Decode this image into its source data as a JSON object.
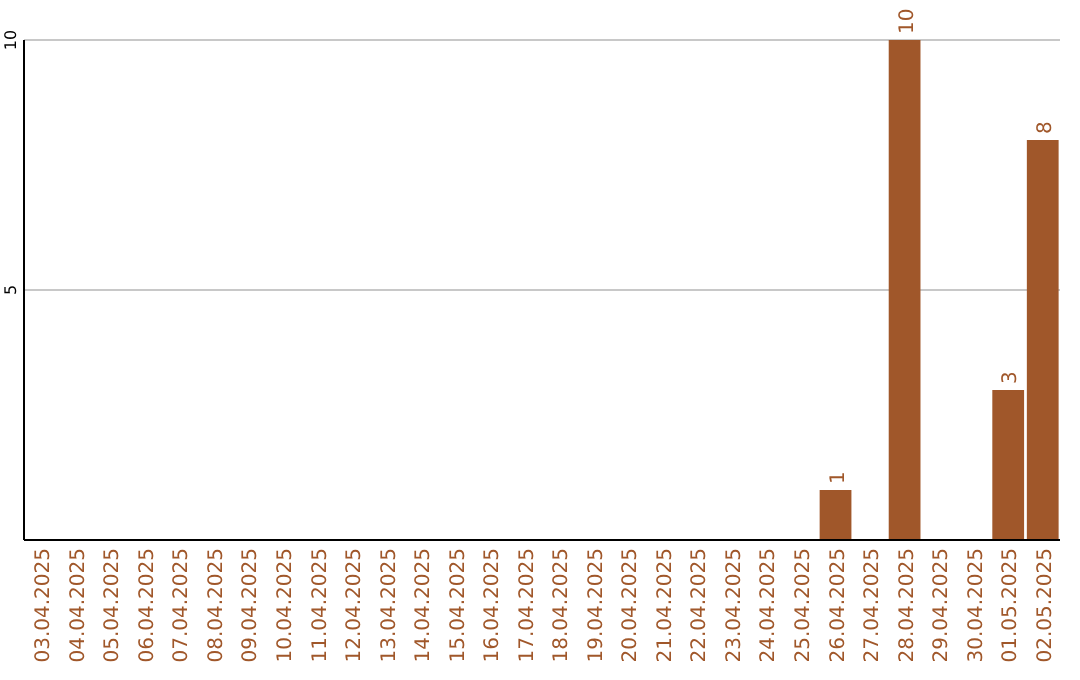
{
  "chart_data": {
    "type": "bar",
    "categories": [
      "03.04.2025",
      "04.04.2025",
      "05.04.2025",
      "06.04.2025",
      "07.04.2025",
      "08.04.2025",
      "09.04.2025",
      "10.04.2025",
      "11.04.2025",
      "12.04.2025",
      "13.04.2025",
      "14.04.2025",
      "15.04.2025",
      "16.04.2025",
      "17.04.2025",
      "18.04.2025",
      "19.04.2025",
      "20.04.2025",
      "21.04.2025",
      "22.04.2025",
      "23.04.2025",
      "24.04.2025",
      "25.04.2025",
      "26.04.2025",
      "27.04.2025",
      "28.04.2025",
      "29.04.2025",
      "30.04.2025",
      "01.05.2025",
      "02.05.2025"
    ],
    "values": [
      0,
      0,
      0,
      0,
      0,
      0,
      0,
      0,
      0,
      0,
      0,
      0,
      0,
      0,
      0,
      0,
      0,
      0,
      0,
      0,
      0,
      0,
      0,
      1,
      0,
      10,
      0,
      0,
      3,
      8
    ],
    "value_labels": [
      null,
      null,
      null,
      null,
      null,
      null,
      null,
      null,
      null,
      null,
      null,
      null,
      null,
      null,
      null,
      null,
      null,
      null,
      null,
      null,
      null,
      null,
      null,
      "1",
      null,
      "10",
      null,
      null,
      "3",
      "8"
    ],
    "color": "#a0572a",
    "ylim": [
      0,
      10
    ],
    "yticks": [
      5,
      10
    ],
    "grid": "y"
  }
}
